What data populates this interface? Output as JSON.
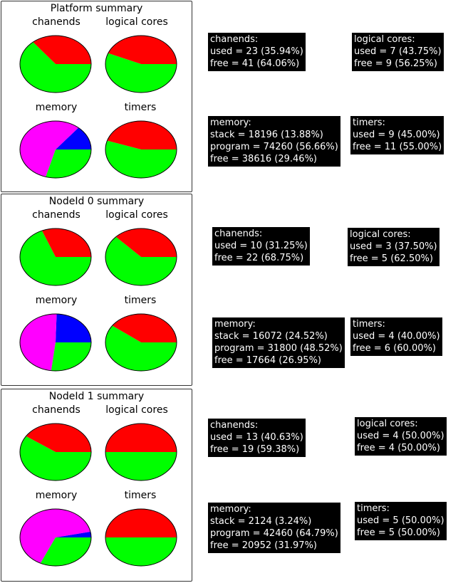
{
  "colors": {
    "used": "#ff0000",
    "free": "#00ff00",
    "stack": "#0000ff",
    "program": "#ff00ff"
  },
  "chart_data": [
    {
      "type": "pie",
      "title": "Platform summary",
      "pies": [
        {
          "label": "chanends",
          "slices": [
            {
              "name": "used",
              "value": 23,
              "percent": 35.94
            },
            {
              "name": "free",
              "value": 41,
              "percent": 64.06
            }
          ]
        },
        {
          "label": "logical cores",
          "slices": [
            {
              "name": "used",
              "value": 7,
              "percent": 43.75
            },
            {
              "name": "free",
              "value": 9,
              "percent": 56.25
            }
          ]
        },
        {
          "label": "memory",
          "slices": [
            {
              "name": "stack",
              "value": 18196,
              "percent": 13.88
            },
            {
              "name": "program",
              "value": 74260,
              "percent": 56.66
            },
            {
              "name": "free",
              "value": 38616,
              "percent": 29.46
            }
          ]
        },
        {
          "label": "timers",
          "slices": [
            {
              "name": "used",
              "value": 9,
              "percent": 45.0
            },
            {
              "name": "free",
              "value": 11,
              "percent": 55.0
            }
          ]
        }
      ]
    },
    {
      "type": "pie",
      "title": "NodeId 0 summary",
      "pies": [
        {
          "label": "chanends",
          "slices": [
            {
              "name": "used",
              "value": 10,
              "percent": 31.25
            },
            {
              "name": "free",
              "value": 22,
              "percent": 68.75
            }
          ]
        },
        {
          "label": "logical cores",
          "slices": [
            {
              "name": "used",
              "value": 3,
              "percent": 37.5
            },
            {
              "name": "free",
              "value": 5,
              "percent": 62.5
            }
          ]
        },
        {
          "label": "memory",
          "slices": [
            {
              "name": "stack",
              "value": 16072,
              "percent": 24.52
            },
            {
              "name": "program",
              "value": 31800,
              "percent": 48.52
            },
            {
              "name": "free",
              "value": 17664,
              "percent": 26.95
            }
          ]
        },
        {
          "label": "timers",
          "slices": [
            {
              "name": "used",
              "value": 4,
              "percent": 40.0
            },
            {
              "name": "free",
              "value": 6,
              "percent": 60.0
            }
          ]
        }
      ]
    },
    {
      "type": "pie",
      "title": "NodeId 1 summary",
      "pies": [
        {
          "label": "chanends",
          "slices": [
            {
              "name": "used",
              "value": 13,
              "percent": 40.63
            },
            {
              "name": "free",
              "value": 19,
              "percent": 59.38
            }
          ]
        },
        {
          "label": "logical cores",
          "slices": [
            {
              "name": "used",
              "value": 4,
              "percent": 50.0
            },
            {
              "name": "free",
              "value": 4,
              "percent": 50.0
            }
          ]
        },
        {
          "label": "memory",
          "slices": [
            {
              "name": "stack",
              "value": 2124,
              "percent": 3.24
            },
            {
              "name": "program",
              "value": 42460,
              "percent": 64.79
            },
            {
              "name": "free",
              "value": 20952,
              "percent": 31.97
            }
          ]
        },
        {
          "label": "timers",
          "slices": [
            {
              "name": "used",
              "value": 5,
              "percent": 50.0
            },
            {
              "name": "free",
              "value": 5,
              "percent": 50.0
            }
          ]
        }
      ]
    }
  ],
  "info_boxes": [
    {
      "title": "chanends:",
      "lines": [
        "used = 23 (35.94%)",
        "free = 41 (64.06%)"
      ]
    },
    {
      "title": "logical cores:",
      "lines": [
        "used = 7 (43.75%)",
        "free = 9 (56.25%)"
      ]
    },
    {
      "title": "memory:",
      "lines": [
        "stack = 18196 (13.88%)",
        "program = 74260 (56.66%)",
        "free = 38616 (29.46%)"
      ]
    },
    {
      "title": "timers:",
      "lines": [
        "used = 9 (45.00%)",
        "free = 11 (55.00%)"
      ]
    },
    {
      "title": "chanends:",
      "lines": [
        "used = 10 (31.25%)",
        "free = 22 (68.75%)"
      ]
    },
    {
      "title": "logical cores:",
      "lines": [
        "used = 3 (37.50%)",
        "free = 5 (62.50%)"
      ]
    },
    {
      "title": "memory:",
      "lines": [
        "stack = 16072 (24.52%)",
        "program = 31800 (48.52%)",
        "free = 17664 (26.95%)"
      ]
    },
    {
      "title": "timers:",
      "lines": [
        "used = 4 (40.00%)",
        "free = 6 (60.00%)"
      ]
    },
    {
      "title": "chanends:",
      "lines": [
        "used = 13 (40.63%)",
        "free = 19 (59.38%)"
      ]
    },
    {
      "title": "logical cores:",
      "lines": [
        "used = 4 (50.00%)",
        "free = 4 (50.00%)"
      ]
    },
    {
      "title": "memory:",
      "lines": [
        "stack = 2124 (3.24%)",
        "program = 42460 (64.79%)",
        "free = 20952 (31.97%)"
      ]
    },
    {
      "title": "timers:",
      "lines": [
        "used = 5 (50.00%)",
        "free = 5 (50.00%)"
      ]
    }
  ]
}
